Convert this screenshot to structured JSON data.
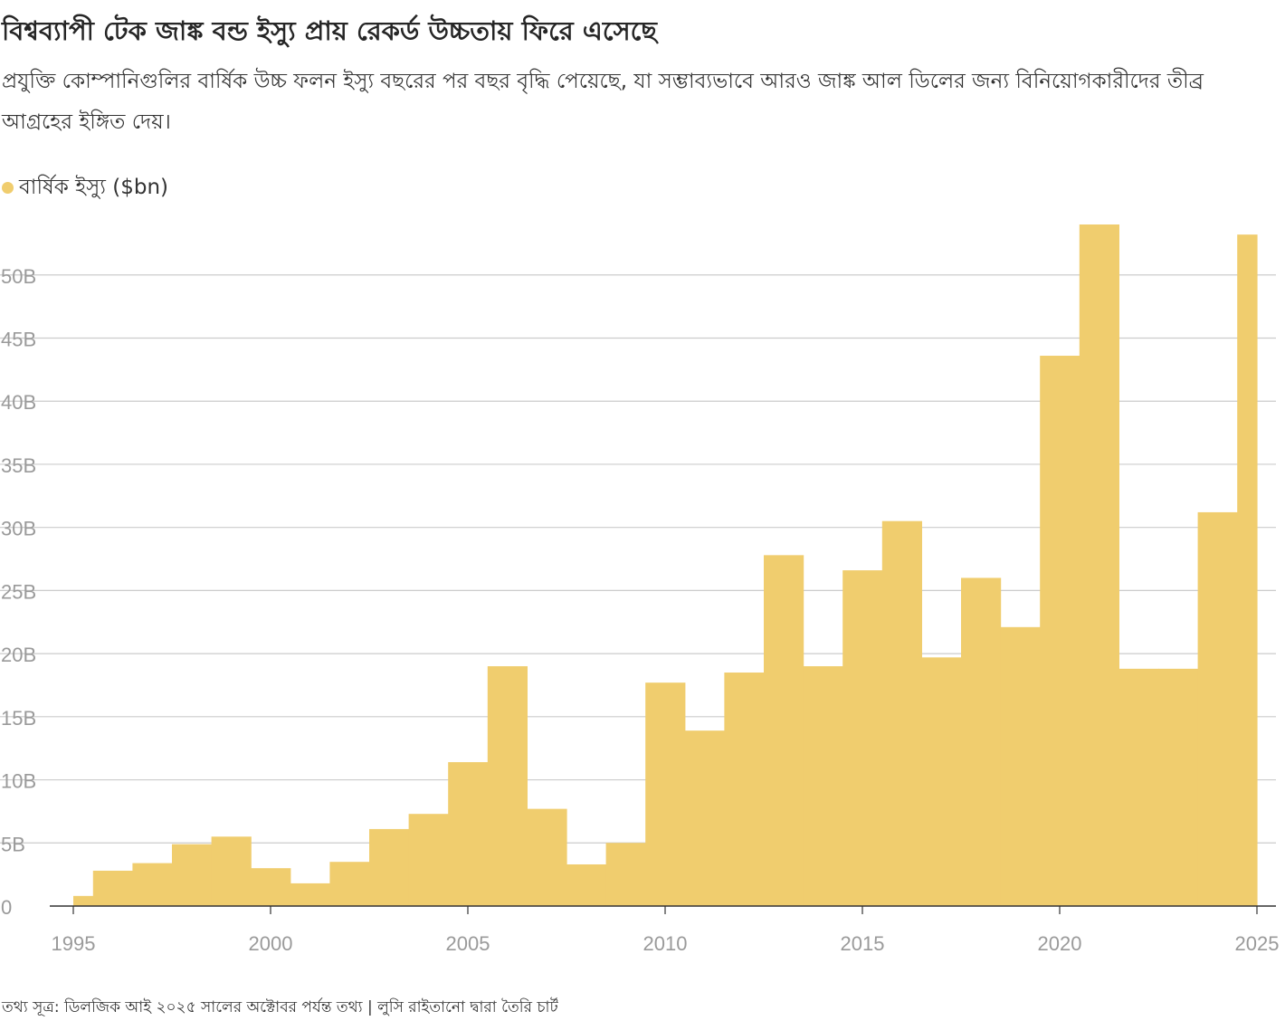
{
  "title": "বিশ্বব্যাপী টেক জাঙ্ক বন্ড ইস্যু প্রায় রেকর্ড উচ্চতায় ফিরে এসেছে",
  "subtitle": "প্রযুক্তি কোম্পানিগুলির বার্ষিক উচ্চ ফলন ইস্যু বছরের পর বছর বৃদ্ধি পেয়েছে, যা সম্ভাব্যভাবে আরও জাঙ্ক আল ডিলের জন্য বিনিয়োগকারীদের তীব্র আগ্রহের ইঙ্গিত দেয়।",
  "legend": {
    "label": "বার্ষিক ইস্যু ($bn)",
    "color": "#f0cd6e"
  },
  "source": "তথ্য সূত্র: ডিলজিক আই ২০২৫ সালের অক্টোবর পর্যন্ত তথ্য | লুসি রাইতানো দ্বারা তৈরি চার্ট",
  "chart_data": {
    "type": "area",
    "series": [
      {
        "name": "বার্ষিক ইস্যু ($bn)",
        "x": [
          1995,
          1996,
          1997,
          1998,
          1999,
          2000,
          2001,
          2002,
          2003,
          2004,
          2005,
          2006,
          2007,
          2008,
          2009,
          2010,
          2011,
          2012,
          2013,
          2014,
          2015,
          2016,
          2017,
          2018,
          2019,
          2020,
          2021,
          2022,
          2023,
          2024,
          2025
        ],
        "values": [
          0.8,
          2.8,
          3.4,
          4.9,
          5.5,
          3.0,
          1.8,
          3.5,
          6.1,
          7.3,
          11.4,
          19.0,
          7.7,
          3.3,
          5.0,
          17.7,
          13.9,
          18.5,
          27.8,
          19.0,
          26.6,
          30.5,
          19.7,
          26.0,
          22.1,
          43.6,
          54.0,
          18.8,
          18.8,
          31.2,
          53.2
        ]
      }
    ],
    "xlim": [
      1995,
      2025
    ],
    "ylim": [
      0,
      54
    ],
    "x_ticks": [
      "1995",
      "2000",
      "2005",
      "2010",
      "2015",
      "2020",
      "2025"
    ],
    "x_tick_values": [
      1995,
      2000,
      2005,
      2010,
      2015,
      2020,
      2025
    ],
    "y_ticks": [
      "0",
      "5B",
      "10B",
      "15B",
      "20B",
      "25B",
      "30B",
      "35B",
      "40B",
      "45B",
      "50B"
    ],
    "y_tick_values": [
      0,
      5,
      10,
      15,
      20,
      25,
      30,
      35,
      40,
      45,
      50
    ],
    "grid": true,
    "colors": {
      "fill": "#f0cd6e",
      "grid": "#cccccc",
      "axis": "#333333"
    }
  }
}
